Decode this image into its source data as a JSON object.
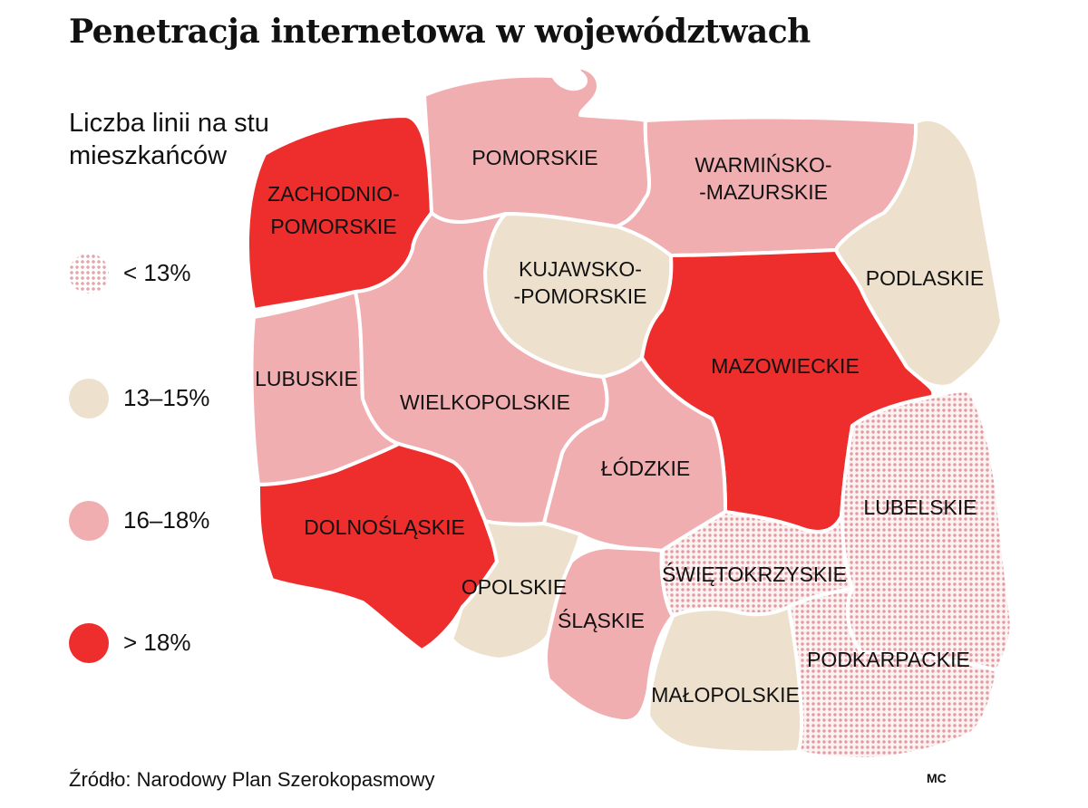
{
  "title": "Penetracja internetowa w województwach",
  "subtitle": "Liczba linii na stu mieszkańców",
  "legend": [
    {
      "label": "< 13%",
      "category": "lt13",
      "color": "#e7a4a9"
    },
    {
      "label": "13–15%",
      "category": "13-15",
      "color": "#ede1cd"
    },
    {
      "label": "16–18%",
      "category": "16-18",
      "color": "#f0aeb1"
    },
    {
      "label": "> 18%",
      "category": "gt18",
      "color": "#ee2d2d"
    }
  ],
  "regions": [
    {
      "id": "zachodniopomorskie",
      "lines": [
        "ZACHODNIO-",
        "POMORSKIE"
      ],
      "category": "gt18"
    },
    {
      "id": "pomorskie",
      "lines": [
        "POMORSKIE"
      ],
      "category": "16-18"
    },
    {
      "id": "warminsko-mazurskie",
      "lines": [
        "WARMIŃSKO-",
        "-MAZURSKIE"
      ],
      "category": "16-18"
    },
    {
      "id": "podlaskie",
      "lines": [
        "PODLASKIE"
      ],
      "category": "13-15"
    },
    {
      "id": "kujawsko-pomorskie",
      "lines": [
        "KUJAWSKO-",
        "-POMORSKIE"
      ],
      "category": "13-15"
    },
    {
      "id": "mazowieckie",
      "lines": [
        "MAZOWIECKIE"
      ],
      "category": "gt18"
    },
    {
      "id": "lubuskie",
      "lines": [
        "LUBUSKIE"
      ],
      "category": "16-18"
    },
    {
      "id": "wielkopolskie",
      "lines": [
        "WIELKOPOLSKIE"
      ],
      "category": "16-18"
    },
    {
      "id": "lodzkie",
      "lines": [
        "ŁÓDZKIE"
      ],
      "category": "16-18"
    },
    {
      "id": "lubelskie",
      "lines": [
        "LUBELSKIE"
      ],
      "category": "lt13"
    },
    {
      "id": "dolnoslaskie",
      "lines": [
        "DOLNOŚLĄSKIE"
      ],
      "category": "gt18"
    },
    {
      "id": "opolskie",
      "lines": [
        "OPOLSKIE"
      ],
      "category": "13-15"
    },
    {
      "id": "slaskie",
      "lines": [
        "ŚLĄSKIE"
      ],
      "category": "16-18"
    },
    {
      "id": "swietokrzyskie",
      "lines": [
        "ŚWIĘTOKRZYSKIE"
      ],
      "category": "lt13"
    },
    {
      "id": "malopolskie",
      "lines": [
        "MAŁOPOLSKIE"
      ],
      "category": "13-15"
    },
    {
      "id": "podkarpackie",
      "lines": [
        "PODKARPACKIE"
      ],
      "category": "lt13"
    }
  ],
  "source": "Źródło: Narodowy Plan Szerokopasmowy",
  "credit": "MC"
}
